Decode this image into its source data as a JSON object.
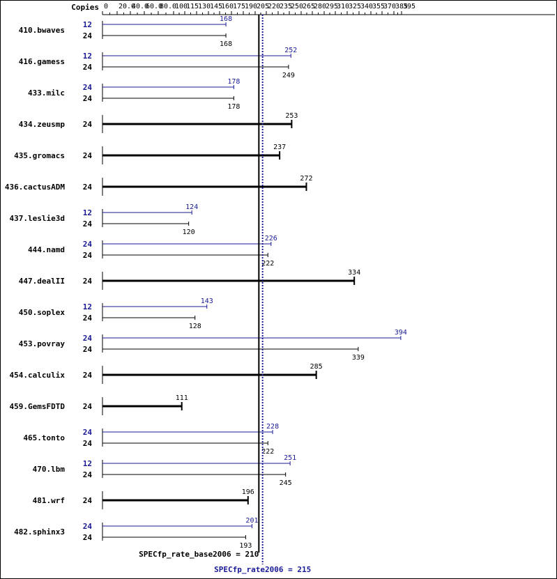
{
  "copies_label": "Copies",
  "colors": {
    "base": "#000000",
    "peak": "#191996",
    "background": "#ffffff"
  },
  "chart_data": {
    "type": "bar",
    "orientation": "horizontal",
    "x_ticks": [
      "0",
      "20.0",
      "40.0",
      "60.0",
      "80.0",
      "100",
      "115",
      "130",
      "145",
      "160",
      "175",
      "190",
      "205",
      "220",
      "235",
      "250",
      "265",
      "280",
      "295",
      "310",
      "325",
      "340",
      "355",
      "370",
      "385",
      "395"
    ],
    "x_tick_values": [
      0,
      20,
      40,
      60,
      80,
      100,
      115,
      130,
      145,
      160,
      175,
      190,
      205,
      220,
      235,
      250,
      265,
      280,
      295,
      310,
      325,
      340,
      355,
      370,
      385,
      395
    ],
    "xlim": [
      0,
      395
    ],
    "grid": false,
    "reference_lines": [
      {
        "label": "SPECfp_rate_base2006 = 210",
        "value": 210,
        "series": "base",
        "style": "solid"
      },
      {
        "label": "SPECfp_rate2006 = 215",
        "value": 215,
        "series": "peak",
        "style": "dotted"
      }
    ],
    "benchmarks": [
      {
        "name": "410.bwaves",
        "peak": {
          "copies": "12",
          "value": 168,
          "label": "168"
        },
        "base": {
          "copies": "24",
          "value": 168,
          "label": "168"
        }
      },
      {
        "name": "416.gamess",
        "peak": {
          "copies": "12",
          "value": 252,
          "label": "252"
        },
        "base": {
          "copies": "24",
          "value": 249,
          "label": "249"
        }
      },
      {
        "name": "433.milc",
        "peak": {
          "copies": "24",
          "value": 178,
          "label": "178"
        },
        "base": {
          "copies": "24",
          "value": 178,
          "label": "178"
        }
      },
      {
        "name": "434.zeusmp",
        "base": {
          "copies": "24",
          "value": 253,
          "label": "253"
        }
      },
      {
        "name": "435.gromacs",
        "base": {
          "copies": "24",
          "value": 237,
          "label": "237"
        }
      },
      {
        "name": "436.cactusADM",
        "base": {
          "copies": "24",
          "value": 272,
          "label": "272"
        }
      },
      {
        "name": "437.leslie3d",
        "peak": {
          "copies": "12",
          "value": 124,
          "label": "124"
        },
        "base": {
          "copies": "24",
          "value": 120,
          "label": "120"
        }
      },
      {
        "name": "444.namd",
        "peak": {
          "copies": "24",
          "value": 226,
          "label": "226"
        },
        "base": {
          "copies": "24",
          "value": 222,
          "label": "222"
        }
      },
      {
        "name": "447.dealII",
        "base": {
          "copies": "24",
          "value": 334,
          "label": "334"
        }
      },
      {
        "name": "450.soplex",
        "peak": {
          "copies": "12",
          "value": 143,
          "label": "143"
        },
        "base": {
          "copies": "24",
          "value": 128,
          "label": "128"
        }
      },
      {
        "name": "453.povray",
        "peak": {
          "copies": "24",
          "value": 394,
          "label": "394"
        },
        "base": {
          "copies": "24",
          "value": 339,
          "label": "339"
        }
      },
      {
        "name": "454.calculix",
        "base": {
          "copies": "24",
          "value": 285,
          "label": "285"
        }
      },
      {
        "name": "459.GemsFDTD",
        "base": {
          "copies": "24",
          "value": 111,
          "label": "111"
        }
      },
      {
        "name": "465.tonto",
        "peak": {
          "copies": "24",
          "value": 228,
          "label": "228"
        },
        "base": {
          "copies": "24",
          "value": 222,
          "label": "222"
        }
      },
      {
        "name": "470.lbm",
        "peak": {
          "copies": "12",
          "value": 251,
          "label": "251"
        },
        "base": {
          "copies": "24",
          "value": 245,
          "label": "245"
        }
      },
      {
        "name": "481.wrf",
        "base": {
          "copies": "24",
          "value": 196,
          "label": "196"
        }
      },
      {
        "name": "482.sphinx3",
        "peak": {
          "copies": "24",
          "value": 201,
          "label": "201"
        },
        "base": {
          "copies": "24",
          "value": 193,
          "label": "193"
        }
      }
    ]
  }
}
